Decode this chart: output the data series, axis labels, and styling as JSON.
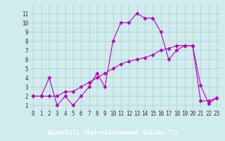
{
  "xlabel": "Windchill (Refroidissement éolien,°C)",
  "line1_x": [
    0,
    1,
    2,
    3,
    4,
    5,
    6,
    7,
    8,
    9,
    10,
    11,
    12,
    13,
    14,
    15,
    16,
    17,
    18,
    19,
    20,
    21,
    22,
    23
  ],
  "line1_y": [
    2,
    2,
    4,
    1,
    2,
    1,
    2,
    3,
    4.5,
    3,
    8,
    10,
    10,
    11,
    10.5,
    10.5,
    9,
    6,
    7,
    7.5,
    7.5,
    3.2,
    1.2,
    1.8
  ],
  "line2_x": [
    0,
    1,
    2,
    3,
    4,
    5,
    6,
    7,
    8,
    9,
    10,
    11,
    12,
    13,
    14,
    15,
    16,
    17,
    18,
    19,
    20,
    21,
    22,
    23
  ],
  "line2_y": [
    2,
    2,
    2,
    2,
    2.5,
    2.5,
    3,
    3.5,
    4,
    4.5,
    5,
    5.5,
    5.8,
    6,
    6.2,
    6.5,
    7,
    7.2,
    7.5,
    7.5,
    7.5,
    1.5,
    1.5,
    1.8
  ],
  "line_color": "#bb00bb",
  "bg_color": "#d0ecec",
  "grid_color": "#aacece",
  "xlabel_bg": "#7700aa",
  "xlabel_color": "#ffffff",
  "ylim_min": 0.5,
  "ylim_max": 12.0,
  "xlim_min": -0.5,
  "xlim_max": 23.5,
  "yticks": [
    1,
    2,
    3,
    4,
    5,
    6,
    7,
    8,
    9,
    10,
    11
  ],
  "xticks": [
    0,
    1,
    2,
    3,
    4,
    5,
    6,
    7,
    8,
    9,
    10,
    11,
    12,
    13,
    14,
    15,
    16,
    17,
    18,
    19,
    20,
    21,
    22,
    23
  ],
  "marker": "D",
  "markersize": 2.5,
  "linewidth": 0.8,
  "tick_fontsize": 5.5,
  "xlabel_fontsize": 6.0
}
